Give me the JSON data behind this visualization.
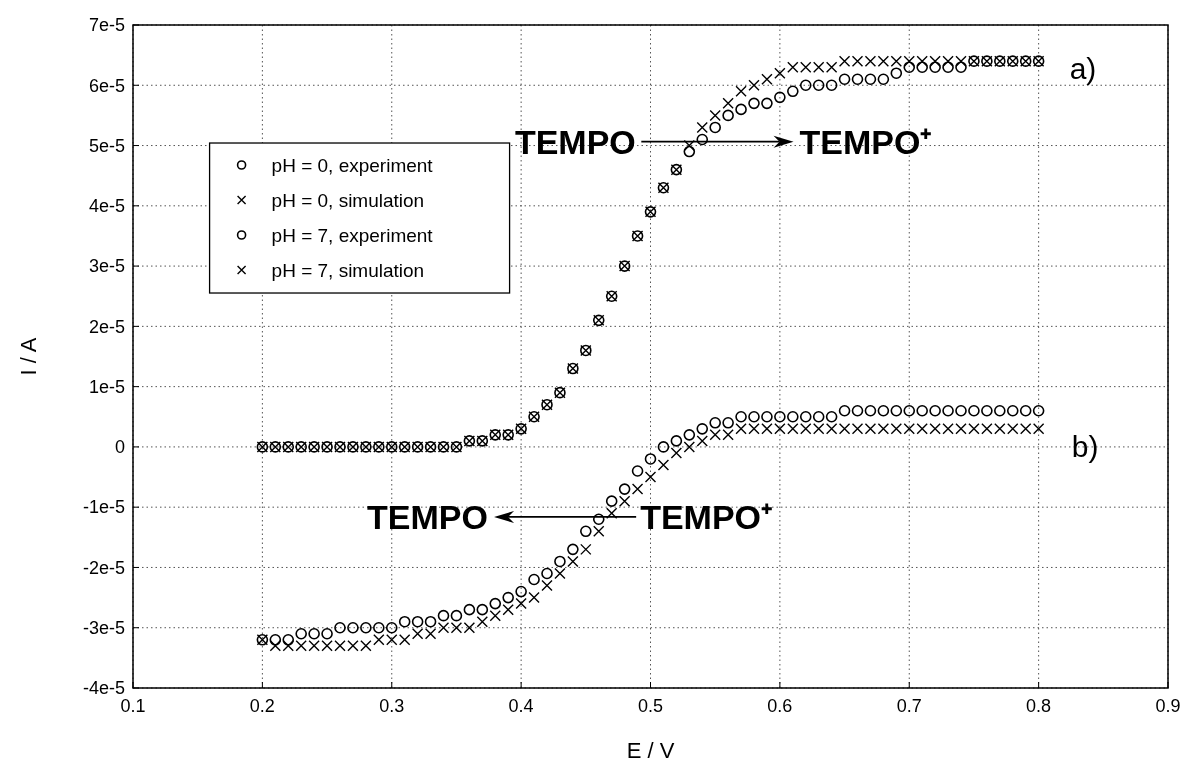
{
  "chart_data": {
    "type": "scatter",
    "xlabel": "E / V",
    "ylabel": "I / A",
    "x": [
      0.2,
      0.21,
      0.22,
      0.23,
      0.24,
      0.25,
      0.26,
      0.27,
      0.28,
      0.29,
      0.3,
      0.31,
      0.32,
      0.33,
      0.34,
      0.35,
      0.36,
      0.37,
      0.38,
      0.39,
      0.4,
      0.41,
      0.42,
      0.43,
      0.44,
      0.45,
      0.46,
      0.47,
      0.48,
      0.49,
      0.5,
      0.51,
      0.52,
      0.53,
      0.54,
      0.55,
      0.56,
      0.57,
      0.58,
      0.59,
      0.6,
      0.61,
      0.62,
      0.63,
      0.64,
      0.65,
      0.66,
      0.67,
      0.68,
      0.69,
      0.7,
      0.71,
      0.72,
      0.73,
      0.74,
      0.75,
      0.76,
      0.77,
      0.78,
      0.79,
      0.8
    ],
    "series": [
      {
        "name": "pH = 0, experiment",
        "color": "#000000",
        "marker": "circle",
        "values": [
          0,
          0,
          0,
          0,
          0,
          0,
          0,
          0,
          0,
          0,
          0,
          0,
          0,
          0,
          0,
          0,
          1e-06,
          1e-06,
          2e-06,
          2e-06,
          3e-06,
          5e-06,
          7e-06,
          9e-06,
          1.3e-05,
          1.6e-05,
          2.1e-05,
          2.5e-05,
          3e-05,
          3.5e-05,
          3.9e-05,
          4.3e-05,
          4.6e-05,
          4.9e-05,
          5.1e-05,
          5.3e-05,
          5.5e-05,
          5.6e-05,
          5.7e-05,
          5.7e-05,
          5.8e-05,
          5.9e-05,
          6e-05,
          6e-05,
          6e-05,
          6.1e-05,
          6.1e-05,
          6.1e-05,
          6.1e-05,
          6.2e-05,
          6.3e-05,
          6.3e-05,
          6.3e-05,
          6.3e-05,
          6.3e-05,
          6.4e-05,
          6.4e-05,
          6.4e-05,
          6.4e-05,
          6.4e-05,
          6.4e-05
        ]
      },
      {
        "name": "pH = 0, simulation",
        "color": "#000000",
        "marker": "cross",
        "values": [
          0,
          0,
          0,
          0,
          0,
          0,
          0,
          0,
          0,
          0,
          0,
          0,
          0,
          0,
          0,
          0,
          1e-06,
          1e-06,
          2e-06,
          2e-06,
          3e-06,
          5e-06,
          7e-06,
          9e-06,
          1.3e-05,
          1.6e-05,
          2.1e-05,
          2.5e-05,
          3e-05,
          3.5e-05,
          3.9e-05,
          4.3e-05,
          4.6e-05,
          5e-05,
          5.3e-05,
          5.5e-05,
          5.7e-05,
          5.9e-05,
          6e-05,
          6.1e-05,
          6.2e-05,
          6.3e-05,
          6.3e-05,
          6.3e-05,
          6.3e-05,
          6.4e-05,
          6.4e-05,
          6.4e-05,
          6.4e-05,
          6.4e-05,
          6.4e-05,
          6.4e-05,
          6.4e-05,
          6.4e-05,
          6.4e-05,
          6.4e-05,
          6.4e-05,
          6.4e-05,
          6.4e-05,
          6.4e-05,
          6.4e-05
        ]
      },
      {
        "name": "pH = 7, experiment",
        "color": "#000000",
        "marker": "circle",
        "values": [
          -3.2e-05,
          -3.2e-05,
          -3.2e-05,
          -3.1e-05,
          -3.1e-05,
          -3.1e-05,
          -3e-05,
          -3e-05,
          -3e-05,
          -3e-05,
          -3e-05,
          -2.9e-05,
          -2.9e-05,
          -2.9e-05,
          -2.8e-05,
          -2.8e-05,
          -2.7e-05,
          -2.7e-05,
          -2.6e-05,
          -2.5e-05,
          -2.4e-05,
          -2.2e-05,
          -2.1e-05,
          -1.9e-05,
          -1.7e-05,
          -1.4e-05,
          -1.2e-05,
          -9e-06,
          -7e-06,
          -4e-06,
          -2e-06,
          0,
          1e-06,
          2e-06,
          3e-06,
          4e-06,
          4e-06,
          5e-06,
          5e-06,
          5e-06,
          5e-06,
          5e-06,
          5e-06,
          5e-06,
          5e-06,
          6e-06,
          6e-06,
          6e-06,
          6e-06,
          6e-06,
          6e-06,
          6e-06,
          6e-06,
          6e-06,
          6e-06,
          6e-06,
          6e-06,
          6e-06,
          6e-06,
          6e-06,
          6e-06
        ]
      },
      {
        "name": "pH = 7, simulation",
        "color": "#000000",
        "marker": "cross",
        "values": [
          -3.2e-05,
          -3.3e-05,
          -3.3e-05,
          -3.3e-05,
          -3.3e-05,
          -3.3e-05,
          -3.3e-05,
          -3.3e-05,
          -3.3e-05,
          -3.2e-05,
          -3.2e-05,
          -3.2e-05,
          -3.1e-05,
          -3.1e-05,
          -3e-05,
          -3e-05,
          -3e-05,
          -2.9e-05,
          -2.8e-05,
          -2.7e-05,
          -2.6e-05,
          -2.5e-05,
          -2.3e-05,
          -2.1e-05,
          -1.9e-05,
          -1.7e-05,
          -1.4e-05,
          -1.1e-05,
          -9e-06,
          -7e-06,
          -5e-06,
          -3e-06,
          -1e-06,
          0,
          1e-06,
          2e-06,
          2e-06,
          3e-06,
          3e-06,
          3e-06,
          3e-06,
          3e-06,
          3e-06,
          3e-06,
          3e-06,
          3e-06,
          3e-06,
          3e-06,
          3e-06,
          3e-06,
          3e-06,
          3e-06,
          3e-06,
          3e-06,
          3e-06,
          3e-06,
          3e-06,
          3e-06,
          3e-06,
          3e-06,
          3e-06
        ]
      }
    ],
    "xlim": [
      0.1,
      0.9
    ],
    "xticks": [
      0.1,
      0.2,
      0.3,
      0.4,
      0.5,
      0.6,
      0.7,
      0.8,
      0.9
    ],
    "ylim": [
      -4e-05,
      7e-05
    ],
    "yticks": [
      {
        "value": -4e-05,
        "label": "-4e-5"
      },
      {
        "value": -3e-05,
        "label": "-3e-5"
      },
      {
        "value": -2e-05,
        "label": "-2e-5"
      },
      {
        "value": -1e-05,
        "label": "-1e-5"
      },
      0,
      {
        "value": 1e-05,
        "label": "1e-5"
      },
      {
        "value": 2e-05,
        "label": "2e-5"
      },
      {
        "value": 3e-05,
        "label": "3e-5"
      },
      {
        "value": 4e-05,
        "label": "4e-5"
      },
      {
        "value": 5e-05,
        "label": "5e-5"
      },
      {
        "value": 6e-05,
        "label": "6e-5"
      },
      {
        "value": 7e-05,
        "label": "7e-5"
      }
    ],
    "grid": true,
    "legend": "top left",
    "annotations": [
      "TEMPO",
      "TEMPO⁺",
      "TEMPO⁺",
      "TEMPO",
      "a)",
      "b)"
    ]
  }
}
